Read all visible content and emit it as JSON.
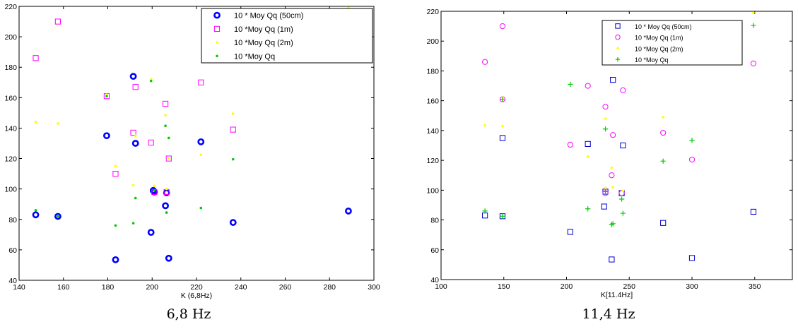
{
  "chart_data": [
    {
      "type": "scatter",
      "caption": "6,8 Hz",
      "xlabel": "K (6,8Hz)",
      "ylabel": "",
      "xlim": [
        140,
        300
      ],
      "ylim": [
        40,
        220
      ],
      "xticks": [
        140,
        160,
        180,
        200,
        220,
        240,
        260,
        280,
        300
      ],
      "yticks": [
        40,
        60,
        80,
        100,
        120,
        140,
        160,
        180,
        200,
        220
      ],
      "grid": false,
      "legend_position": "top-right",
      "series": [
        {
          "name": "10 * Moy Qq (50cm)",
          "marker": "circle-thick",
          "color": "#0000ff",
          "points": [
            [
              147.5,
              83
            ],
            [
              157.5,
              82
            ],
            [
              179.5,
              135
            ],
            [
              191.5,
              174
            ],
            [
              192.5,
              130
            ],
            [
              183.5,
              53.5
            ],
            [
              199.5,
              71.5
            ],
            [
              200.5,
              99
            ],
            [
              201,
              98
            ],
            [
              206,
              89
            ],
            [
              206.5,
              97.5
            ],
            [
              207.5,
              54.5
            ],
            [
              222,
              131
            ],
            [
              236.5,
              78
            ],
            [
              288.5,
              85.5
            ]
          ]
        },
        {
          "name": "10 *Moy Qq (1m)",
          "marker": "square",
          "color": "#ff00ff",
          "points": [
            [
              147.5,
              186
            ],
            [
              157.5,
              210
            ],
            [
              179.5,
              161
            ],
            [
              183.5,
              110
            ],
            [
              191.5,
              137
            ],
            [
              192.5,
              167
            ],
            [
              199.5,
              130.5
            ],
            [
              201,
              98
            ],
            [
              206,
              156
            ],
            [
              206.5,
              98
            ],
            [
              207.5,
              120
            ],
            [
              222,
              170
            ],
            [
              236.5,
              139
            ],
            [
              288.5,
              185.5
            ]
          ]
        },
        {
          "name": "10 *Moy Qq (2m)",
          "marker": "dot",
          "color": "#ffff00",
          "points": [
            [
              147.5,
              144
            ],
            [
              157.5,
              143
            ],
            [
              179.5,
              162
            ],
            [
              183.5,
              115
            ],
            [
              191.5,
              102.5
            ],
            [
              192.5,
              135
            ],
            [
              199.5,
              172
            ],
            [
              201,
              102
            ],
            [
              206,
              148.5
            ],
            [
              206.5,
              100
            ],
            [
              207.5,
              120
            ],
            [
              222,
              122.5
            ],
            [
              236.5,
              149.5
            ],
            [
              288.5,
              219
            ]
          ]
        },
        {
          "name": "10 *Moy Qq",
          "marker": "dot",
          "color": "#00cc00",
          "points": [
            [
              147.5,
              86
            ],
            [
              157.5,
              82
            ],
            [
              179.5,
              161
            ],
            [
              183.5,
              76
            ],
            [
              191.5,
              77.5
            ],
            [
              192.5,
              94
            ],
            [
              199.5,
              171
            ],
            [
              201,
              99
            ],
            [
              206,
              141.5
            ],
            [
              206.5,
              84.5
            ],
            [
              207.5,
              133.5
            ],
            [
              222,
              87.5
            ],
            [
              236.5,
              119.5
            ],
            [
              288.5,
              210.5
            ]
          ]
        }
      ]
    },
    {
      "type": "scatter",
      "caption": "11,4 Hz",
      "xlabel": "K[11.4Hz]",
      "ylabel": "",
      "xlim": [
        100,
        380
      ],
      "ylim": [
        40,
        220
      ],
      "xticks": [
        100,
        150,
        200,
        250,
        300,
        350
      ],
      "yticks": [
        40,
        60,
        80,
        100,
        120,
        140,
        160,
        180,
        200,
        220
      ],
      "grid": false,
      "legend_position": "top-right",
      "series": [
        {
          "name": "10 * Moy Qq (50cm)",
          "marker": "square",
          "color": "#0000cc",
          "points": [
            [
              135,
              83
            ],
            [
              149,
              82.5
            ],
            [
              149,
              135
            ],
            [
              203,
              72
            ],
            [
              217,
              131
            ],
            [
              230,
              89
            ],
            [
              231,
              99
            ],
            [
              236,
              53.5
            ],
            [
              237,
              174
            ],
            [
              244,
              98
            ],
            [
              245,
              130
            ],
            [
              277,
              78
            ],
            [
              300,
              54.5
            ],
            [
              349,
              85.5
            ]
          ]
        },
        {
          "name": "10 *Moy Qq (1m)",
          "marker": "circle",
          "color": "#ff00ff",
          "points": [
            [
              135,
              186
            ],
            [
              149,
              210
            ],
            [
              149,
              161
            ],
            [
              203,
              130.5
            ],
            [
              217,
              170
            ],
            [
              231,
              156
            ],
            [
              231,
              98
            ],
            [
              236,
              110
            ],
            [
              237,
              137
            ],
            [
              244,
              98
            ],
            [
              245,
              167
            ],
            [
              277,
              138.5
            ],
            [
              300,
              120.5
            ],
            [
              349,
              185
            ]
          ]
        },
        {
          "name": "10 *Moy Qq (2m)",
          "marker": "dot",
          "color": "#ffff00",
          "points": [
            [
              135,
              143.5
            ],
            [
              149,
              143
            ],
            [
              149,
              162
            ],
            [
              217,
              122.5
            ],
            [
              231,
              148
            ],
            [
              231,
              101.5
            ],
            [
              236,
              115
            ],
            [
              237,
              102
            ],
            [
              245,
              99.5
            ],
            [
              277,
              149
            ],
            [
              349,
              219
            ]
          ]
        },
        {
          "name": "10 *Moy Qq",
          "marker": "plus",
          "color": "#00cc00",
          "points": [
            [
              135,
              86
            ],
            [
              149,
              82.5
            ],
            [
              149,
              161
            ],
            [
              203,
              171
            ],
            [
              217,
              87.5
            ],
            [
              231,
              141
            ],
            [
              231,
              99
            ],
            [
              236,
              77
            ],
            [
              237,
              77.5
            ],
            [
              244,
              94
            ],
            [
              245,
              84.5
            ],
            [
              277,
              119.5
            ],
            [
              300,
              133.5
            ],
            [
              349,
              210.5
            ]
          ]
        }
      ]
    }
  ]
}
